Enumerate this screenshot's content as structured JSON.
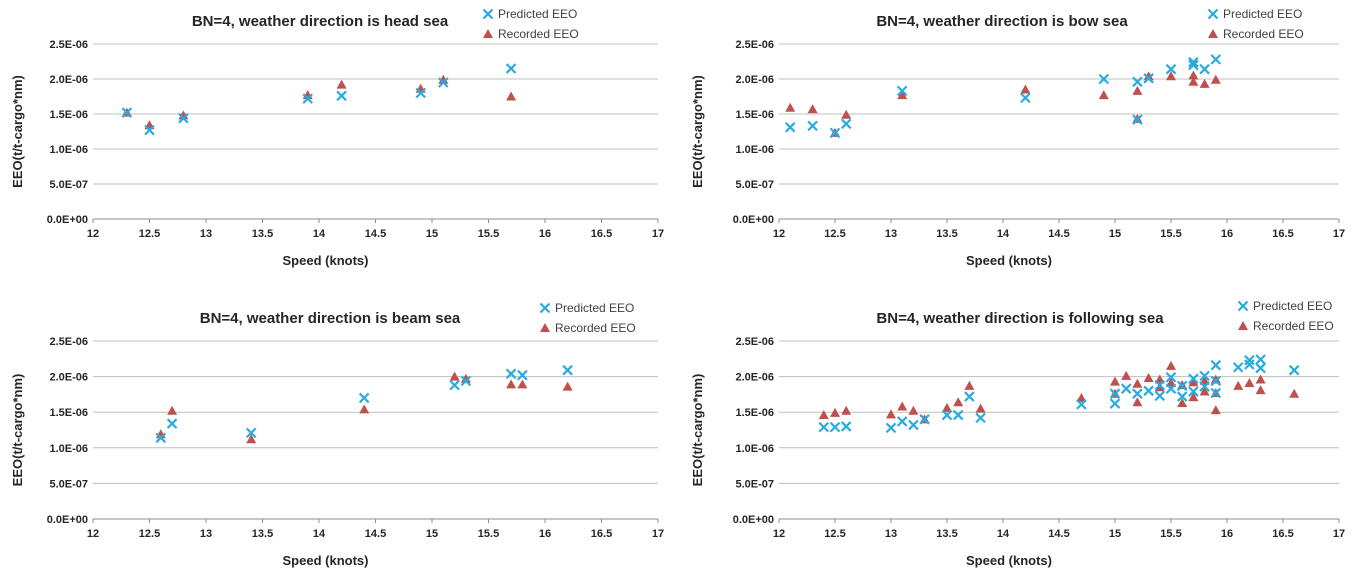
{
  "colors": {
    "predicted": "#29abe2",
    "recorded": "#c0504d"
  },
  "chart_data": [
    {
      "type": "scatter",
      "title": "BN=4, weather direction is head sea",
      "xlabel": "Speed (knots)",
      "ylabel": "EEO(t/t-cargo*nm)",
      "xlim": [
        12,
        17
      ],
      "ylim": [
        0,
        2.5e-06
      ],
      "x_ticks": [
        "12",
        "12.5",
        "13",
        "13.5",
        "14",
        "14.5",
        "15",
        "15.5",
        "16",
        "16.5",
        "17"
      ],
      "y_ticks": [
        "0.0E+00",
        "5.0E-07",
        "1.0E-06",
        "1.5E-06",
        "2.0E-06",
        "2.5E-06"
      ],
      "grid": true,
      "legend": "top-right",
      "series": [
        {
          "name": "Predicted EEO",
          "marker": "x",
          "points": [
            [
              12.3,
              1.52e-06
            ],
            [
              12.5,
              1.27e-06
            ],
            [
              12.8,
              1.44e-06
            ],
            [
              13.9,
              1.72e-06
            ],
            [
              14.2,
              1.76e-06
            ],
            [
              14.9,
              1.8e-06
            ],
            [
              15.1,
              1.95e-06
            ],
            [
              15.7,
              2.15e-06
            ]
          ]
        },
        {
          "name": "Recorded EEO",
          "marker": "triangle",
          "points": [
            [
              12.3,
              1.52e-06
            ],
            [
              12.5,
              1.34e-06
            ],
            [
              12.8,
              1.48e-06
            ],
            [
              13.9,
              1.77e-06
            ],
            [
              14.2,
              1.92e-06
            ],
            [
              14.9,
              1.86e-06
            ],
            [
              15.1,
              1.99e-06
            ],
            [
              15.7,
              1.75e-06
            ]
          ]
        }
      ]
    },
    {
      "type": "scatter",
      "title": "BN=4, weather direction is bow sea",
      "xlabel": "Speed (knots)",
      "ylabel": "EEO(t/t-cargo*nm)",
      "xlim": [
        12,
        17
      ],
      "ylim": [
        0,
        2.5e-06
      ],
      "x_ticks": [
        "12",
        "12.5",
        "13",
        "13.5",
        "14",
        "14.5",
        "15",
        "15.5",
        "16",
        "16.5",
        "17"
      ],
      "y_ticks": [
        "0.0E+00",
        "5.0E-07",
        "1.0E-06",
        "1.5E-06",
        "2.0E-06",
        "2.5E-06"
      ],
      "grid": true,
      "legend": "top-right",
      "series": [
        {
          "name": "Predicted EEO",
          "marker": "x",
          "points": [
            [
              12.1,
              1.31e-06
            ],
            [
              12.3,
              1.33e-06
            ],
            [
              12.5,
              1.23e-06
            ],
            [
              12.6,
              1.36e-06
            ],
            [
              13.1,
              1.83e-06
            ],
            [
              14.2,
              1.73e-06
            ],
            [
              14.9,
              2e-06
            ],
            [
              15.2,
              1.42e-06
            ],
            [
              15.2,
              1.96e-06
            ],
            [
              15.3,
              2.01e-06
            ],
            [
              15.5,
              2.14e-06
            ],
            [
              15.7,
              2.2e-06
            ],
            [
              15.7,
              2.24e-06
            ],
            [
              15.8,
              2.14e-06
            ],
            [
              15.9,
              2.28e-06
            ]
          ]
        },
        {
          "name": "Recorded EEO",
          "marker": "triangle",
          "points": [
            [
              12.1,
              1.59e-06
            ],
            [
              12.3,
              1.57e-06
            ],
            [
              12.5,
              1.23e-06
            ],
            [
              12.6,
              1.49e-06
            ],
            [
              13.1,
              1.77e-06
            ],
            [
              14.2,
              1.85e-06
            ],
            [
              14.9,
              1.77e-06
            ],
            [
              15.2,
              1.43e-06
            ],
            [
              15.2,
              1.83e-06
            ],
            [
              15.3,
              2.04e-06
            ],
            [
              15.5,
              2.04e-06
            ],
            [
              15.7,
              2.05e-06
            ],
            [
              15.7,
              1.96e-06
            ],
            [
              15.8,
              1.93e-06
            ],
            [
              15.9,
              1.99e-06
            ]
          ]
        }
      ]
    },
    {
      "type": "scatter",
      "title": "BN=4, weather direction is beam sea",
      "xlabel": "Speed (knots)",
      "ylabel": "EEO(t/t-cargo*nm)",
      "xlim": [
        12,
        17
      ],
      "ylim": [
        0,
        2.5e-06
      ],
      "x_ticks": [
        "12",
        "12.5",
        "13",
        "13.5",
        "14",
        "14.5",
        "15",
        "15.5",
        "16",
        "16.5",
        "17"
      ],
      "y_ticks": [
        "0.0E+00",
        "5.0E-07",
        "1.0E-06",
        "1.5E-06",
        "2.0E-06",
        "2.5E-06"
      ],
      "grid": true,
      "legend": "top-right",
      "series": [
        {
          "name": "Predicted EEO",
          "marker": "x",
          "points": [
            [
              12.6,
              1.14e-06
            ],
            [
              12.7,
              1.34e-06
            ],
            [
              13.4,
              1.21e-06
            ],
            [
              14.4,
              1.7e-06
            ],
            [
              15.2,
              1.88e-06
            ],
            [
              15.3,
              1.94e-06
            ],
            [
              15.7,
              2.04e-06
            ],
            [
              15.8,
              2.02e-06
            ],
            [
              16.2,
              2.09e-06
            ]
          ]
        },
        {
          "name": "Recorded EEO",
          "marker": "triangle",
          "points": [
            [
              12.6,
              1.19e-06
            ],
            [
              12.7,
              1.52e-06
            ],
            [
              13.4,
              1.12e-06
            ],
            [
              14.4,
              1.54e-06
            ],
            [
              15.2,
              2e-06
            ],
            [
              15.3,
              1.97e-06
            ],
            [
              15.7,
              1.89e-06
            ],
            [
              15.8,
              1.89e-06
            ],
            [
              16.2,
              1.86e-06
            ]
          ]
        }
      ]
    },
    {
      "type": "scatter",
      "title": "BN=4, weather direction is following sea",
      "xlabel": "Speed (knots)",
      "ylabel": "EEO(t/t-cargo*nm)",
      "xlim": [
        12,
        17
      ],
      "ylim": [
        0,
        2.5e-06
      ],
      "x_ticks": [
        "12",
        "12.5",
        "13",
        "13.5",
        "14",
        "14.5",
        "15",
        "15.5",
        "16",
        "16.5",
        "17"
      ],
      "y_ticks": [
        "0.0E+00",
        "5.0E-07",
        "1.0E-06",
        "1.5E-06",
        "2.0E-06",
        "2.5E-06"
      ],
      "grid": true,
      "legend": "top-right",
      "series": [
        {
          "name": "Predicted EEO",
          "marker": "x",
          "points": [
            [
              12.4,
              1.29e-06
            ],
            [
              12.5,
              1.29e-06
            ],
            [
              12.6,
              1.3e-06
            ],
            [
              13.0,
              1.28e-06
            ],
            [
              13.1,
              1.37e-06
            ],
            [
              13.2,
              1.32e-06
            ],
            [
              13.3,
              1.4e-06
            ],
            [
              13.5,
              1.46e-06
            ],
            [
              13.6,
              1.46e-06
            ],
            [
              13.7,
              1.72e-06
            ],
            [
              13.8,
              1.42e-06
            ],
            [
              14.7,
              1.61e-06
            ],
            [
              15.0,
              1.62e-06
            ],
            [
              15.0,
              1.76e-06
            ],
            [
              15.1,
              1.83e-06
            ],
            [
              15.2,
              1.76e-06
            ],
            [
              15.3,
              1.8e-06
            ],
            [
              15.4,
              1.73e-06
            ],
            [
              15.4,
              1.88e-06
            ],
            [
              15.5,
              1.83e-06
            ],
            [
              15.5,
              1.99e-06
            ],
            [
              15.6,
              1.72e-06
            ],
            [
              15.6,
              1.87e-06
            ],
            [
              15.7,
              1.79e-06
            ],
            [
              15.7,
              1.97e-06
            ],
            [
              15.8,
              1.86e-06
            ],
            [
              15.8,
              2.01e-06
            ],
            [
              15.9,
              1.77e-06
            ],
            [
              15.9,
              1.94e-06
            ],
            [
              15.9,
              2.16e-06
            ],
            [
              16.1,
              2.13e-06
            ],
            [
              16.2,
              2.17e-06
            ],
            [
              16.2,
              2.23e-06
            ],
            [
              16.3,
              2.12e-06
            ],
            [
              16.3,
              2.24e-06
            ],
            [
              16.6,
              2.09e-06
            ]
          ]
        },
        {
          "name": "Recorded EEO",
          "marker": "triangle",
          "points": [
            [
              12.4,
              1.46e-06
            ],
            [
              12.5,
              1.49e-06
            ],
            [
              12.6,
              1.52e-06
            ],
            [
              13.0,
              1.47e-06
            ],
            [
              13.1,
              1.58e-06
            ],
            [
              13.2,
              1.52e-06
            ],
            [
              13.3,
              1.4e-06
            ],
            [
              13.5,
              1.56e-06
            ],
            [
              13.6,
              1.64e-06
            ],
            [
              13.7,
              1.87e-06
            ],
            [
              13.8,
              1.55e-06
            ],
            [
              14.7,
              1.7e-06
            ],
            [
              15.0,
              1.76e-06
            ],
            [
              15.0,
              1.93e-06
            ],
            [
              15.1,
              2.01e-06
            ],
            [
              15.2,
              1.64e-06
            ],
            [
              15.2,
              1.9e-06
            ],
            [
              15.3,
              1.98e-06
            ],
            [
              15.4,
              1.85e-06
            ],
            [
              15.4,
              1.96e-06
            ],
            [
              15.5,
              1.91e-06
            ],
            [
              15.5,
              2.15e-06
            ],
            [
              15.6,
              1.63e-06
            ],
            [
              15.6,
              1.88e-06
            ],
            [
              15.7,
              1.71e-06
            ],
            [
              15.7,
              1.92e-06
            ],
            [
              15.8,
              1.79e-06
            ],
            [
              15.8,
              1.94e-06
            ],
            [
              15.9,
              1.53e-06
            ],
            [
              15.9,
              1.77e-06
            ],
            [
              15.9,
              1.96e-06
            ],
            [
              16.1,
              1.87e-06
            ],
            [
              16.2,
              1.91e-06
            ],
            [
              16.3,
              1.81e-06
            ],
            [
              16.3,
              1.96e-06
            ],
            [
              16.6,
              1.76e-06
            ]
          ]
        }
      ]
    }
  ]
}
